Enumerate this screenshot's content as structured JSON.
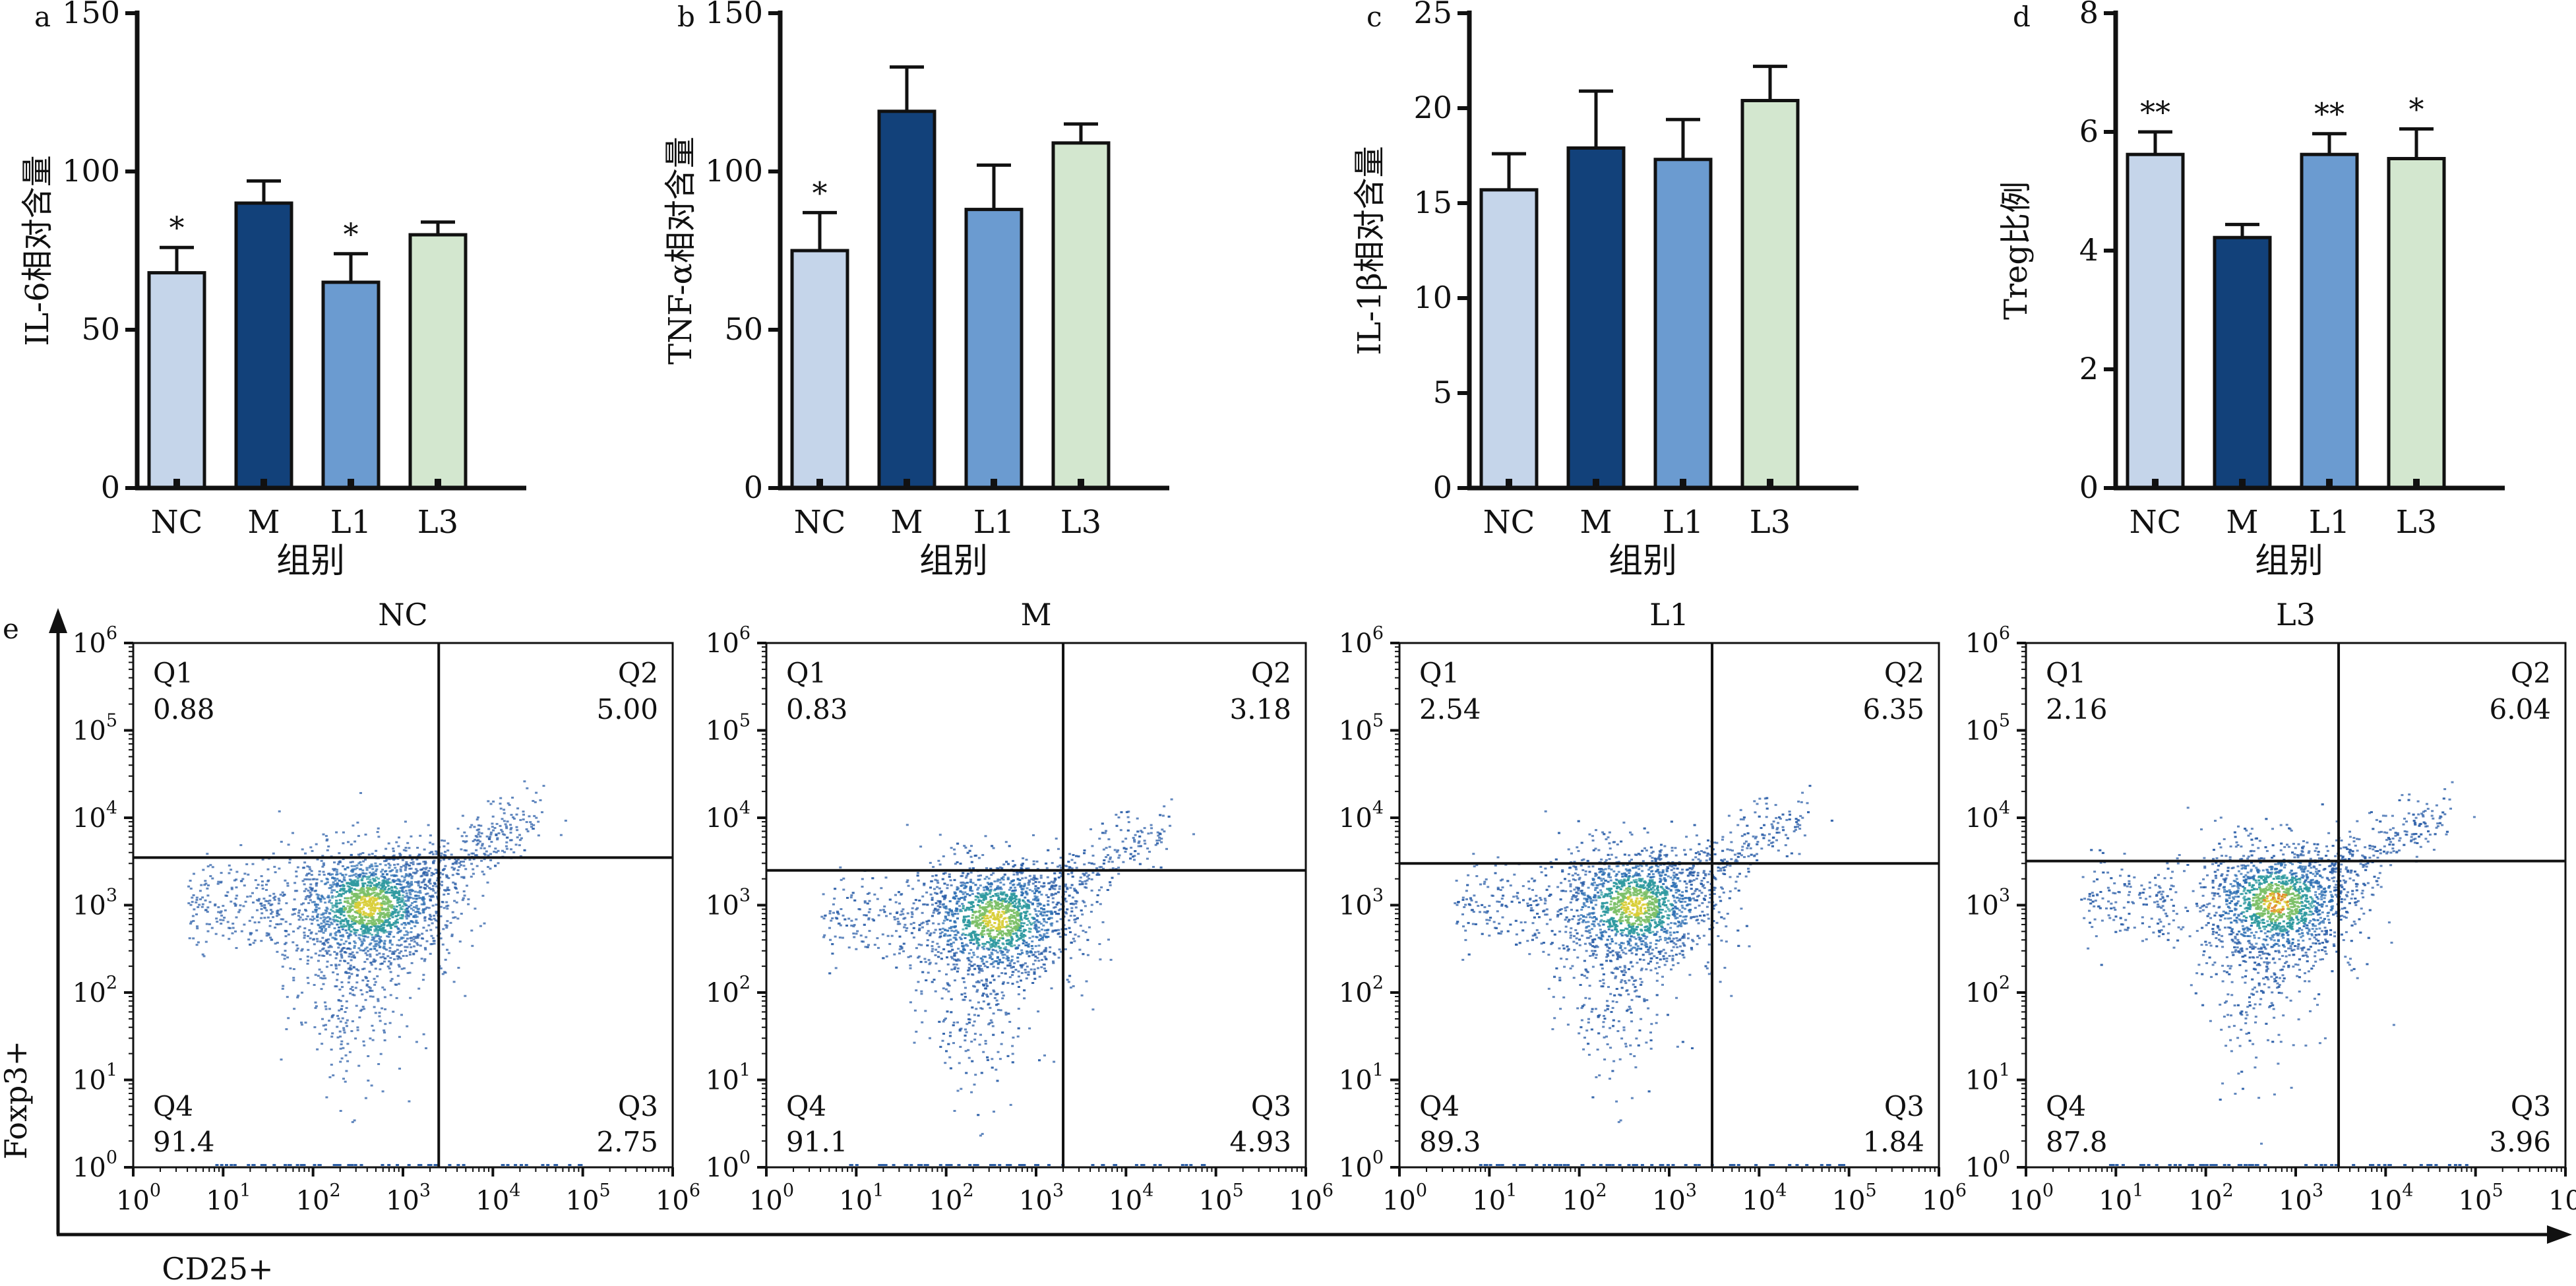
{
  "chart_data": [
    {
      "type": "bar",
      "panel": "a",
      "ylabel": "IL-6相对含量",
      "xlabel": "组别",
      "categories": [
        "NC",
        "M",
        "L1",
        "L3"
      ],
      "values": [
        68,
        90,
        65,
        80
      ],
      "errors": [
        8,
        7,
        9,
        4
      ],
      "significance": [
        "*",
        "",
        "*",
        ""
      ],
      "ylim": [
        0,
        150
      ],
      "yticks": [
        0,
        50,
        100,
        150
      ],
      "bar_colors": [
        "#c5d5ea",
        "#12417a",
        "#6b9bd0",
        "#d3e7cf"
      ]
    },
    {
      "type": "bar",
      "panel": "b",
      "ylabel": "TNF-α相对含量",
      "xlabel": "组别",
      "categories": [
        "NC",
        "M",
        "L1",
        "L3"
      ],
      "values": [
        75,
        119,
        88,
        109
      ],
      "errors": [
        12,
        14,
        14,
        6
      ],
      "significance": [
        "*",
        "",
        "",
        ""
      ],
      "ylim": [
        0,
        150
      ],
      "yticks": [
        0,
        50,
        100,
        150
      ],
      "bar_colors": [
        "#c5d5ea",
        "#12417a",
        "#6b9bd0",
        "#d3e7cf"
      ]
    },
    {
      "type": "bar",
      "panel": "c",
      "ylabel": "IL-1β相对含量",
      "xlabel": "组别",
      "categories": [
        "NC",
        "M",
        "L1",
        "L3"
      ],
      "values": [
        15.7,
        17.9,
        17.3,
        20.4
      ],
      "errors": [
        1.9,
        3.0,
        2.1,
        1.8
      ],
      "significance": [
        "",
        "",
        "",
        ""
      ],
      "ylim": [
        0,
        25
      ],
      "yticks": [
        0,
        5,
        10,
        15,
        20,
        25
      ],
      "bar_colors": [
        "#c5d5ea",
        "#12417a",
        "#6b9bd0",
        "#d3e7cf"
      ]
    },
    {
      "type": "bar",
      "panel": "d",
      "ylabel": "Treg比例",
      "xlabel": "组别",
      "categories": [
        "NC",
        "M",
        "L1",
        "L3"
      ],
      "values": [
        5.62,
        4.22,
        5.62,
        5.55
      ],
      "errors": [
        0.38,
        0.22,
        0.35,
        0.5
      ],
      "significance": [
        "**",
        "",
        "**",
        "*"
      ],
      "ylim": [
        0,
        8
      ],
      "yticks": [
        0,
        2,
        4,
        6,
        8
      ],
      "bar_colors": [
        "#c5d5ea",
        "#12417a",
        "#6b9bd0",
        "#d3e7cf"
      ]
    },
    {
      "type": "scatter",
      "panel": "e",
      "plot_style": "flow-cytometry density plots",
      "xlabel": "CD25+",
      "ylabel": "Foxp3+",
      "axis_scale": "log10",
      "tick_labels": [
        "10",
        "10",
        "10",
        "10",
        "10",
        "10",
        "10"
      ],
      "tick_exponents": [
        "0",
        "1",
        "2",
        "3",
        "4",
        "5",
        "6"
      ],
      "xlim": [
        1,
        1000000
      ],
      "ylim": [
        1,
        1000000
      ],
      "plots": [
        {
          "title": "NC",
          "gate_x": 2500,
          "gate_y": 3500,
          "quadrants": {
            "Q1": "0.88",
            "Q2": "5.00",
            "Q3": "2.75",
            "Q4": "91.4"
          },
          "center_x": 400,
          "center_y": 1000
        },
        {
          "title": "M",
          "gate_x": 2000,
          "gate_y": 2500,
          "quadrants": {
            "Q1": "0.83",
            "Q2": "3.18",
            "Q3": "4.93",
            "Q4": "91.1"
          },
          "center_x": 350,
          "center_y": 700
        },
        {
          "title": "L1",
          "gate_x": 3000,
          "gate_y": 3000,
          "quadrants": {
            "Q1": "2.54",
            "Q2": "6.35",
            "Q3": "1.84",
            "Q4": "89.3"
          },
          "center_x": 400,
          "center_y": 1000
        },
        {
          "title": "L3",
          "gate_x": 3000,
          "gate_y": 3200,
          "quadrants": {
            "Q1": "2.16",
            "Q2": "6.04",
            "Q3": "3.96",
            "Q4": "87.8"
          },
          "center_x": 600,
          "center_y": 1100
        }
      ]
    }
  ]
}
